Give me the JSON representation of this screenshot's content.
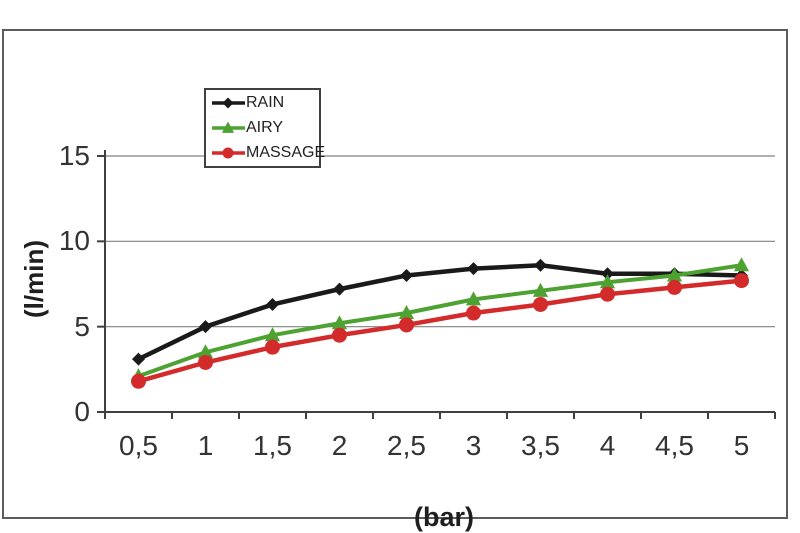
{
  "chart_data": {
    "type": "line",
    "title": "",
    "xlabel": "(bar)",
    "ylabel": "(l/min)",
    "categories": [
      "0,5",
      "1",
      "1,5",
      "2",
      "2,5",
      "3",
      "3,5",
      "4",
      "4,5",
      "5"
    ],
    "x_values": [
      0.5,
      1,
      1.5,
      2,
      2.5,
      3,
      3.5,
      4,
      4.5,
      5
    ],
    "y_ticks": [
      "0",
      "5",
      "10",
      "15"
    ],
    "y_tick_values": [
      0,
      5,
      10,
      15
    ],
    "ylim": [
      0,
      15
    ],
    "grid": true,
    "legend_position": "top-left-inside",
    "series": [
      {
        "name": "RAIN",
        "marker": "diamond",
        "color": "#1a1a1a",
        "values": [
          3.1,
          5.0,
          6.3,
          7.2,
          8.0,
          8.4,
          8.6,
          8.1,
          8.1,
          8.0
        ]
      },
      {
        "name": "AIRY",
        "marker": "triangle",
        "color": "#4da232",
        "values": [
          2.1,
          3.5,
          4.5,
          5.2,
          5.8,
          6.6,
          7.1,
          7.6,
          8.0,
          8.6
        ]
      },
      {
        "name": "MASSAGE",
        "marker": "circle",
        "color": "#d32b2b",
        "values": [
          1.8,
          2.9,
          3.8,
          4.5,
          5.1,
          5.8,
          6.3,
          6.9,
          7.3,
          7.7
        ]
      }
    ],
    "colors": {
      "axis": "#404040",
      "grid": "#808080",
      "frame_border": "#5c5c5c",
      "text": "#333333"
    }
  }
}
